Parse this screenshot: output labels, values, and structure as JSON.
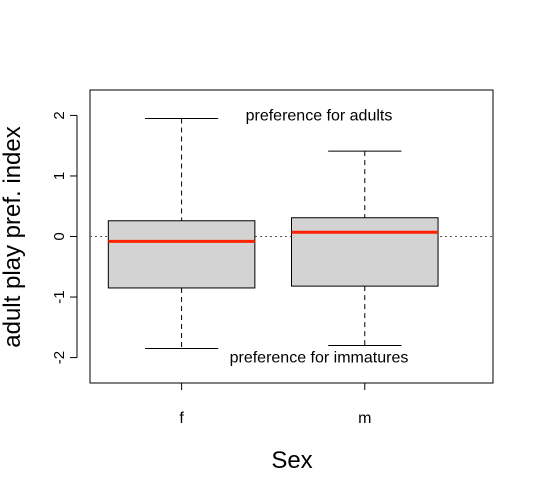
{
  "chart_data": {
    "type": "box",
    "categories": [
      "f",
      "m"
    ],
    "boxes": [
      {
        "category": "f",
        "whisker_low": -1.85,
        "q1": -0.85,
        "median": -0.08,
        "q3": 0.26,
        "whisker_high": 1.95
      },
      {
        "category": "m",
        "whisker_low": -1.8,
        "q1": -0.82,
        "median": 0.07,
        "q3": 0.31,
        "whisker_high": 1.41
      }
    ],
    "xlabel": "Sex",
    "ylabel": "adult play pref. index",
    "ylim": [
      -2.42,
      2.42
    ],
    "yticks": [
      -2,
      -1,
      0,
      1,
      2
    ],
    "reference_line": 0,
    "annotations": [
      {
        "text": "preference for adults",
        "x": 1.75,
        "y": 2.0
      },
      {
        "text": "preference for immatures",
        "x": 1.75,
        "y": -2.0
      }
    ],
    "colors": {
      "box_fill": "#d3d3d3",
      "median": "#ff2200",
      "axis": "#000000",
      "reference": "#555555"
    },
    "grid": false
  }
}
